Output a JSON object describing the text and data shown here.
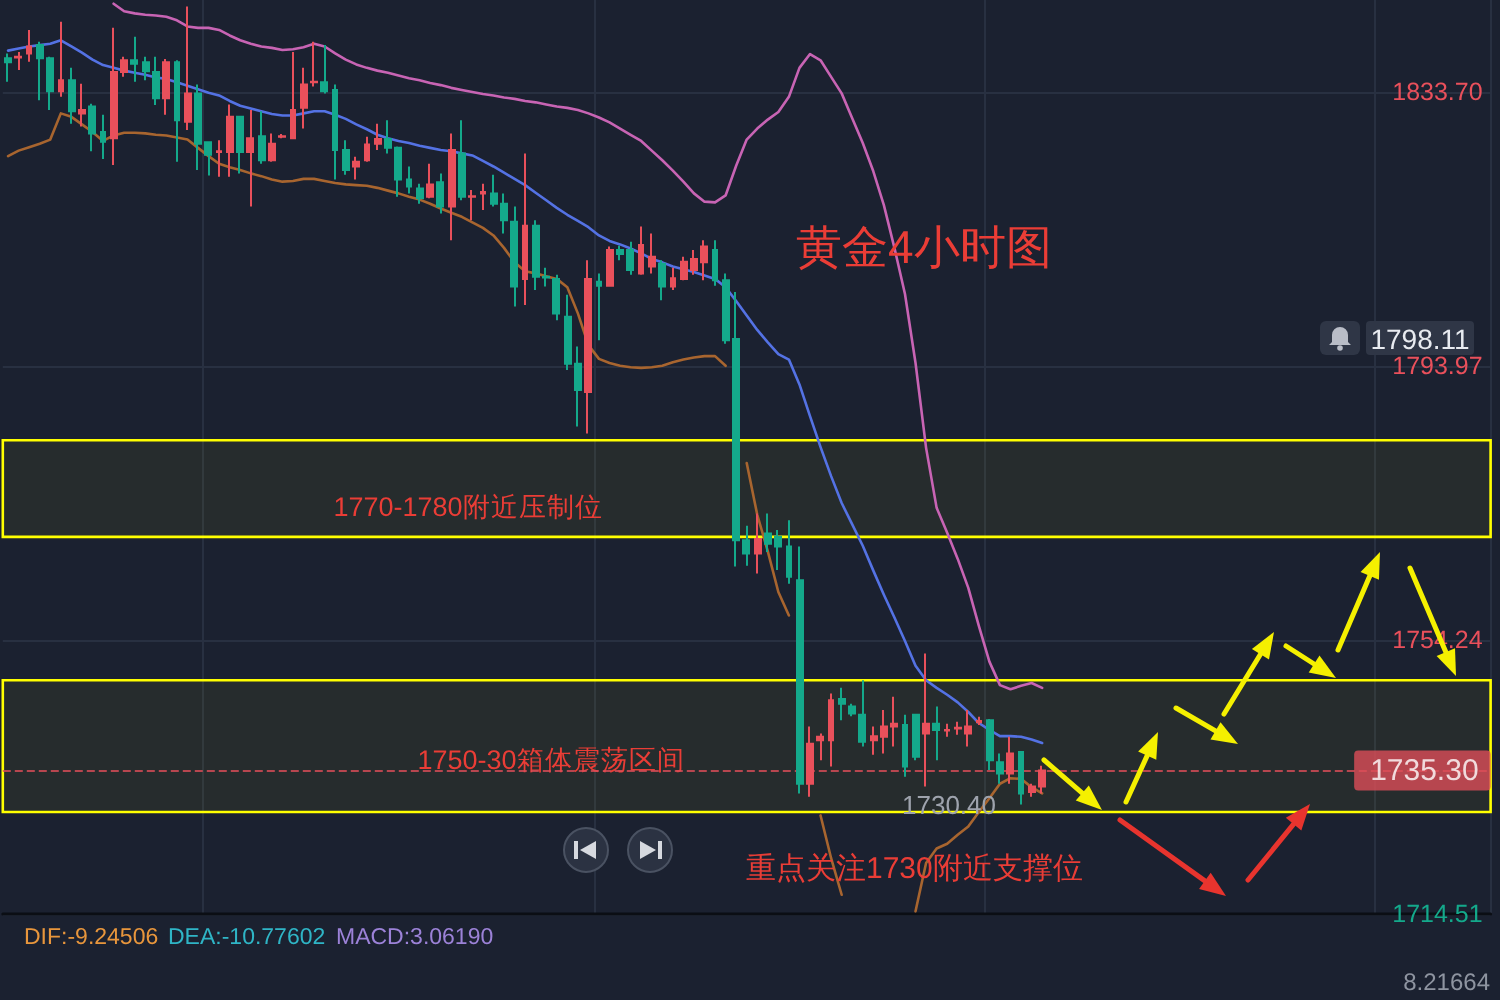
{
  "chart_data": {
    "type": "candlestick",
    "title": "黄金4小时图",
    "categories": [
      null,
      null,
      null,
      null,
      null,
      null,
      null,
      null,
      null,
      null,
      null,
      null,
      null,
      null,
      null,
      null,
      null,
      null,
      null,
      null,
      null,
      null,
      null,
      null,
      null,
      null,
      null,
      null,
      null,
      null,
      null,
      null,
      null,
      null,
      null,
      null,
      null,
      null,
      null,
      null,
      null,
      null,
      null,
      null,
      null,
      null,
      null,
      null,
      null,
      null,
      null,
      null,
      null,
      null,
      null,
      null,
      null,
      null,
      null,
      null,
      null,
      null,
      null,
      null,
      null,
      null,
      null,
      null,
      null,
      null,
      null,
      null,
      null,
      null,
      null,
      null,
      null,
      null,
      null,
      null,
      null,
      null,
      null,
      null,
      null,
      null,
      null,
      null,
      null,
      null,
      null,
      null,
      null,
      null,
      null,
      null,
      null,
      null,
      null,
      null,
      null,
      null,
      null,
      null,
      null,
      null,
      null,
      null,
      null,
      null,
      null,
      null,
      null,
      null,
      null,
      null,
      null,
      null,
      null,
      null,
      null,
      null,
      null,
      null,
      null,
      null,
      null,
      null,
      null,
      null,
      null,
      null,
      null,
      null,
      null,
      null,
      null,
      null,
      null,
      null,
      null
    ],
    "ohlc": [
      [
        1838.6,
        1839.3,
        1835.2,
        1838.0
      ],
      [
        1838.7,
        1839.5,
        1836.9,
        1838.8
      ],
      [
        1839.3,
        1842.7,
        1838.1,
        1840.3
      ],
      [
        1840.5,
        1841.0,
        1832.5,
        1838.6
      ],
      [
        1838.6,
        1838.8,
        1831.1,
        1833.8
      ],
      [
        1833.8,
        1843.9,
        1833.0,
        1835.4
      ],
      [
        1835.4,
        1837.2,
        1829.1,
        1830.9
      ],
      [
        1830.6,
        1834.9,
        1828.7,
        1831.1
      ],
      [
        1831.6,
        1832.0,
        1825.1,
        1827.7
      ],
      [
        1827.9,
        1830.4,
        1824.0,
        1826.5
      ],
      [
        1827.0,
        1843.0,
        1823.1,
        1836.6
      ],
      [
        1836.6,
        1838.8,
        1835.9,
        1838.3
      ],
      [
        1838.3,
        1841.7,
        1835.2,
        1837.8
      ],
      [
        1838.0,
        1838.8,
        1835.4,
        1836.7
      ],
      [
        1836.6,
        1838.8,
        1831.8,
        1832.8
      ],
      [
        1832.8,
        1838.5,
        1830.4,
        1838.0
      ],
      [
        1838.0,
        1838.3,
        1823.6,
        1829.6
      ],
      [
        1829.4,
        1846.1,
        1828.2,
        1833.5
      ],
      [
        1833.5,
        1834.8,
        1822.4,
        1826.2
      ],
      [
        1826.4,
        1826.4,
        1821.6,
        1824.6
      ],
      [
        1825.0,
        1826.7,
        1821.4,
        1825.1
      ],
      [
        1825.0,
        1831.9,
        1821.4,
        1830.1
      ],
      [
        1830.1,
        1830.1,
        1821.9,
        1825.0
      ],
      [
        1825.0,
        1831.1,
        1817.1,
        1827.0
      ],
      [
        1827.3,
        1830.9,
        1823.3,
        1823.8
      ],
      [
        1823.8,
        1827.7,
        1823.6,
        1826.2
      ],
      [
        1827.2,
        1827.6,
        1827.0,
        1827.3
      ],
      [
        1827.0,
        1839.5,
        1827.0,
        1831.1
      ],
      [
        1831.4,
        1837.2,
        1828.4,
        1834.8
      ],
      [
        1835.1,
        1841.0,
        1834.5,
        1835.2
      ],
      [
        1835.1,
        1840.5,
        1833.5,
        1833.8
      ],
      [
        1834.0,
        1834.8,
        1821.0,
        1825.3
      ],
      [
        1825.3,
        1826.7,
        1821.7,
        1822.4
      ],
      [
        1822.9,
        1824.3,
        1821.0,
        1823.6
      ],
      [
        1823.8,
        1827.2,
        1823.6,
        1826.1
      ],
      [
        1826.2,
        1829.1,
        1825.3,
        1826.9
      ],
      [
        1826.9,
        1829.6,
        1824.8,
        1825.6
      ],
      [
        1825.6,
        1825.8,
        1818.5,
        1821.0
      ],
      [
        1821.0,
        1822.9,
        1819.0,
        1820.0
      ],
      [
        1819.7,
        1820.4,
        1817.5,
        1818.3
      ],
      [
        1818.5,
        1823.3,
        1818.3,
        1820.3
      ],
      [
        1820.6,
        1821.9,
        1816.1,
        1817.1
      ],
      [
        1817.1,
        1827.7,
        1812.2,
        1825.3
      ],
      [
        1824.8,
        1829.6,
        1818.0,
        1818.5
      ],
      [
        1818.5,
        1819.5,
        1815.1,
        1818.6
      ],
      [
        1819.0,
        1820.4,
        1816.6,
        1819.2
      ],
      [
        1819.0,
        1821.7,
        1817.1,
        1817.5
      ],
      [
        1817.5,
        1819.0,
        1813.2,
        1815.1
      ],
      [
        1814.9,
        1817.1,
        1802.6,
        1805.5
      ],
      [
        1806.6,
        1824.8,
        1802.8,
        1814.3
      ],
      [
        1814.3,
        1815.1,
        1805.0,
        1806.9
      ],
      [
        1806.9,
        1808.2,
        1805.5,
        1806.8
      ],
      [
        1806.6,
        1807.2,
        1800.6,
        1801.6
      ],
      [
        1801.1,
        1804.3,
        1793.4,
        1794.3
      ],
      [
        1794.3,
        1796.8,
        1785.2,
        1790.5
      ],
      [
        1790.2,
        1809.3,
        1784.2,
        1806.6
      ],
      [
        1806.2,
        1807.4,
        1797.7,
        1805.6
      ],
      [
        1805.6,
        1811.3,
        1805.5,
        1810.8
      ],
      [
        1810.8,
        1811.4,
        1809.3,
        1810.2
      ],
      [
        1810.8,
        1812.0,
        1807.2,
        1807.9
      ],
      [
        1807.4,
        1814.2,
        1807.2,
        1811.5
      ],
      [
        1808.4,
        1813.2,
        1807.4,
        1809.8
      ],
      [
        1808.8,
        1809.3,
        1803.5,
        1805.5
      ],
      [
        1805.5,
        1808.2,
        1805.0,
        1806.7
      ],
      [
        1806.6,
        1809.8,
        1806.4,
        1809.1
      ],
      [
        1807.9,
        1810.8,
        1807.2,
        1809.5
      ],
      [
        1809.0,
        1812.2,
        1806.4,
        1811.3
      ],
      [
        1810.8,
        1812.2,
        1805.6,
        1806.4
      ],
      [
        1806.4,
        1807.4,
        1797.2,
        1797.7
      ],
      [
        1797.9,
        1804.7,
        1764.9,
        1768.7
      ],
      [
        1768.7,
        1770.8,
        1765.0,
        1766.8
      ],
      [
        1766.8,
        1772.6,
        1763.9,
        1768.9
      ],
      [
        1769.7,
        1772.6,
        1767.0,
        1768.2
      ],
      [
        1769.2,
        1770.2,
        1764.4,
        1767.8
      ],
      [
        1767.8,
        1771.6,
        1762.4,
        1763.4
      ],
      [
        1762.9,
        1767.8,
        1732.0,
        1733.4
      ],
      [
        1733.4,
        1741.7,
        1731.5,
        1739.2
      ],
      [
        1739.7,
        1740.7,
        1736.8,
        1740.2
      ],
      [
        1739.7,
        1746.5,
        1735.9,
        1745.5
      ],
      [
        1745.7,
        1747.3,
        1742.6,
        1745.0
      ],
      [
        1744.6,
        1745.0,
        1743.2,
        1743.6
      ],
      [
        1743.4,
        1748.4,
        1738.8,
        1739.5
      ],
      [
        1739.7,
        1741.7,
        1737.6,
        1740.3
      ],
      [
        1740.2,
        1744.1,
        1737.8,
        1741.7
      ],
      [
        1741.7,
        1746.0,
        1738.8,
        1742.1
      ],
      [
        1741.9,
        1743.4,
        1734.4,
        1735.9
      ],
      [
        1743.4,
        1743.4,
        1736.8,
        1737.3
      ],
      [
        1740.7,
        1752.3,
        1733.0,
        1742.1
      ],
      [
        1742.1,
        1744.6,
        1736.8,
        1741.2
      ],
      [
        1741.1,
        1742.1,
        1740.2,
        1741.2
      ],
      [
        1741.4,
        1742.4,
        1740.5,
        1741.5
      ],
      [
        1740.7,
        1744.1,
        1738.8,
        1741.7
      ],
      [
        1742.3,
        1743.1,
        1741.9,
        1742.5
      ],
      [
        1742.6,
        1742.8,
        1735.4,
        1736.8
      ],
      [
        1736.5,
        1737.8,
        1733.4,
        1734.9
      ],
      [
        1734.9,
        1740.2,
        1733.4,
        1737.8
      ],
      [
        1738.0,
        1738.0,
        1730.4,
        1732.0
      ],
      [
        1732.2,
        1733.4,
        1731.5,
        1733.0
      ],
      [
        1733.0,
        1736.0,
        1732.0,
        1735.3
      ],
      null,
      null,
      null,
      null,
      null,
      null,
      null,
      null,
      null,
      null,
      null,
      null,
      null,
      null,
      null,
      null,
      null,
      null,
      null,
      null,
      null,
      null,
      null,
      null,
      null,
      null,
      null,
      null,
      null,
      null,
      null,
      null,
      null,
      null,
      null,
      null,
      null,
      null,
      null,
      null,
      null,
      null
    ],
    "series": [
      {
        "type": "line",
        "color": "#c864b4",
        "values": [
          null,
          null,
          null,
          null,
          null,
          null,
          null,
          null,
          null,
          null,
          1846.5,
          1845.4,
          1845.1,
          1844.9,
          1844.8,
          1844.6,
          1844.1,
          1843.2,
          1843.0,
          1843.0,
          1842.7,
          1841.9,
          1841.2,
          1840.7,
          1840.3,
          1840.1,
          1839.8,
          1839.9,
          1840.2,
          1840.7,
          1840.3,
          1839.3,
          1838.4,
          1837.7,
          1837.2,
          1836.8,
          1836.5,
          1836.1,
          1835.7,
          1835.4,
          1835.0,
          1834.7,
          1834.3,
          1834.0,
          1833.7,
          1833.4,
          1833.2,
          1832.9,
          1832.7,
          1832.4,
          1832.2,
          1831.9,
          1831.6,
          1831.4,
          1831.1,
          1830.6,
          1830.0,
          1829.3,
          1828.4,
          1827.5,
          1826.6,
          1825.2,
          1823.8,
          1822.3,
          1820.7,
          1819.0,
          1817.8,
          1817.7,
          1818.7,
          1823.0,
          1826.8,
          1828.4,
          1829.7,
          1830.8,
          1833.0,
          1837.2,
          1839.2,
          1838.3,
          1835.9,
          1833.5,
          1829.9,
          1826.3,
          1822.2,
          1817.3,
          1811.1,
          1804.4,
          1794.4,
          1782.1,
          1773.4,
          1769.8,
          1766.0,
          1761.8,
          1756.3,
          1751.1,
          1747.7,
          1747.1,
          1747.6,
          1748.0,
          1747.3,
          null,
          null,
          null,
          null,
          null,
          null,
          null,
          null,
          null,
          null,
          null,
          null,
          null,
          null,
          null,
          null,
          null,
          null,
          null,
          null,
          null,
          null,
          null,
          null,
          null,
          null,
          null,
          null,
          null,
          null,
          null,
          null,
          null,
          null,
          null,
          null,
          null,
          null,
          null,
          null,
          null,
          null
        ]
      },
      {
        "type": "line",
        "color": "#5472e4",
        "values": [
          1839.7,
          1840.0,
          1840.3,
          1840.5,
          1840.7,
          1841.2,
          1840.3,
          1839.4,
          1838.4,
          1837.6,
          1837.2,
          1836.8,
          1836.5,
          1836.2,
          1835.8,
          1835.6,
          1835.1,
          1834.6,
          1834.1,
          1833.6,
          1833.2,
          1832.4,
          1831.7,
          1831.3,
          1830.9,
          1830.5,
          1830.3,
          1830.3,
          1830.6,
          1830.9,
          1830.9,
          1830.4,
          1829.8,
          1829.0,
          1828.3,
          1827.5,
          1827.0,
          1826.6,
          1826.3,
          1825.9,
          1825.6,
          1825.3,
          1825.1,
          1824.8,
          1824.5,
          1823.7,
          1822.9,
          1822.0,
          1821.1,
          1820.2,
          1819.1,
          1818.0,
          1816.9,
          1815.9,
          1815.0,
          1814.1,
          1812.9,
          1812.1,
          1811.6,
          1811.0,
          1810.3,
          1809.5,
          1809.0,
          1808.4,
          1808.0,
          1807.6,
          1807.1,
          1806.6,
          1805.4,
          1803.4,
          1801.3,
          1799.2,
          1797.4,
          1795.7,
          1794.9,
          1791.3,
          1786.7,
          1782.2,
          1778.0,
          1774.1,
          1771.0,
          1767.9,
          1764.3,
          1760.8,
          1757.5,
          1754.1,
          1750.5,
          1748.4,
          1747.3,
          1746.3,
          1745.2,
          1743.8,
          1742.2,
          1741.2,
          1740.3,
          1740.3,
          1740.2,
          1739.8,
          1739.3,
          null,
          null,
          null,
          null,
          null,
          null,
          null,
          null,
          null,
          null,
          null,
          null,
          null,
          null,
          null,
          null,
          null,
          null,
          null,
          null,
          null,
          null,
          null,
          null,
          null,
          null,
          null,
          null,
          null,
          null,
          null,
          null,
          null,
          null,
          null,
          null,
          null,
          null,
          null,
          null,
          null,
          null
        ]
      },
      {
        "type": "line",
        "color": "#a8652f",
        "values": [
          1824.4,
          1825.2,
          1825.7,
          1826.2,
          1826.8,
          1830.6,
          1830.1,
          1829.0,
          1827.9,
          1826.6,
          1827.4,
          1827.8,
          1827.8,
          1827.7,
          1827.5,
          1827.4,
          1827.1,
          1826.8,
          1825.6,
          1824.4,
          1823.3,
          1822.8,
          1822.4,
          1821.9,
          1821.5,
          1821.0,
          1820.7,
          1820.8,
          1821.1,
          1821.1,
          1820.8,
          1820.5,
          1820.3,
          1820.2,
          1820.1,
          1819.8,
          1819.4,
          1819.0,
          1818.5,
          1818.1,
          1817.5,
          1816.8,
          1816.2,
          1815.6,
          1814.8,
          1814.0,
          1812.9,
          1811.1,
          1809.0,
          1807.7,
          1807.4,
          1807.0,
          1806.6,
          1805.4,
          1801.6,
          1797.0,
          1795.0,
          1794.4,
          1794.0,
          1793.8,
          1793.7,
          1793.8,
          1794.0,
          1794.5,
          1794.9,
          1795.2,
          1795.4,
          1795.4,
          1794.0,
          null,
          1779.9,
          1772.4,
          1767.1,
          1761.2,
          1757.8,
          null,
          null,
          1728.8,
          1722.6,
          1717.3,
          null,
          null,
          null,
          null,
          null,
          null,
          1714.9,
          1721.9,
          1724.0,
          1724.7,
          1726.0,
          1727.2,
          1729.3,
          1731.3,
          1733.4,
          1734.2,
          1734.1,
          1732.9,
          1732.0,
          null,
          null,
          null,
          null,
          null,
          null,
          null,
          null,
          null,
          null,
          null,
          null,
          null,
          null,
          null,
          null,
          null,
          null,
          null,
          null,
          null,
          null,
          null,
          null,
          null,
          null,
          null,
          null,
          null,
          null,
          null,
          null,
          null,
          null,
          null,
          null,
          null,
          null,
          null,
          null,
          null,
          null
        ]
      }
    ],
    "ylim": [
      1714.51,
      1847.04
    ],
    "yticks": [
      {
        "value": 1833.7,
        "label": "1833.70"
      },
      1793.97,
      1754.24,
      1714.51
    ],
    "grid": true,
    "ref_lines": [
      {
        "axis": "y",
        "value": 1735.3,
        "label": "1735.30",
        "color": "#dc4e58",
        "line_style": "dashed"
      }
    ],
    "bands": [
      {
        "axis": "y",
        "from": 1769.2,
        "to": 1783.2,
        "label": "1770-1780附近压制位",
        "color": "#ffff00"
      },
      {
        "axis": "y",
        "from": 1729.3,
        "to": 1748.4,
        "label": "1750-30箱体震荡区间",
        "color": "#ffff00"
      }
    ],
    "annotations": [
      "重点关注1730附近支撑位",
      "1730.40",
      "1798.11",
      "DIF:-9.24506",
      "DEA:-10.77602",
      "MACD:3.06190",
      "8.21664"
    ]
  }
}
